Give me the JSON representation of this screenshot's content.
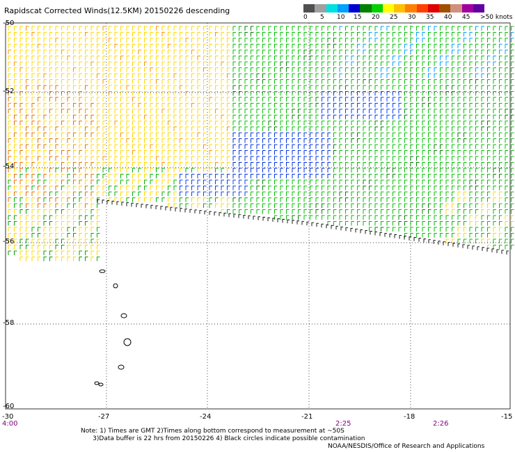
{
  "title": "Rapidscat Corrected Winds(12.5KM) 20150226 descending",
  "colorbar": {
    "colors": [
      "#505050",
      "#a0a0a0",
      "#00e0e0",
      "#00a0ff",
      "#0000d0",
      "#008000",
      "#00d000",
      "#ffff00",
      "#ffc000",
      "#ff8000",
      "#ff4000",
      "#e00000",
      "#a05000",
      "#d09080",
      "#a000a0",
      "#6000a0"
    ],
    "labels": [
      "0",
      "5",
      "10",
      "15",
      "20",
      "25",
      "30",
      "35",
      "40",
      "45",
      ">50 knots"
    ]
  },
  "axes": {
    "x_ticks": [
      "-30",
      "-27",
      "-24",
      "-21",
      "-18",
      "-15"
    ],
    "y_ticks": [
      "-50",
      "-52",
      "-54",
      "-56",
      "-58",
      "-60"
    ],
    "time_labels": [
      "4:00",
      "2:25",
      "2:26"
    ]
  },
  "notes": "Note: 1) Times are GMT 2)Times along bottom correspond to measurement at ~50S\n      3)Data buffer is 22 hrs from 20150226 4) Black circles indicate possible contamination",
  "credit": "NOAA/NESDIS/Office of Research and Applications"
}
